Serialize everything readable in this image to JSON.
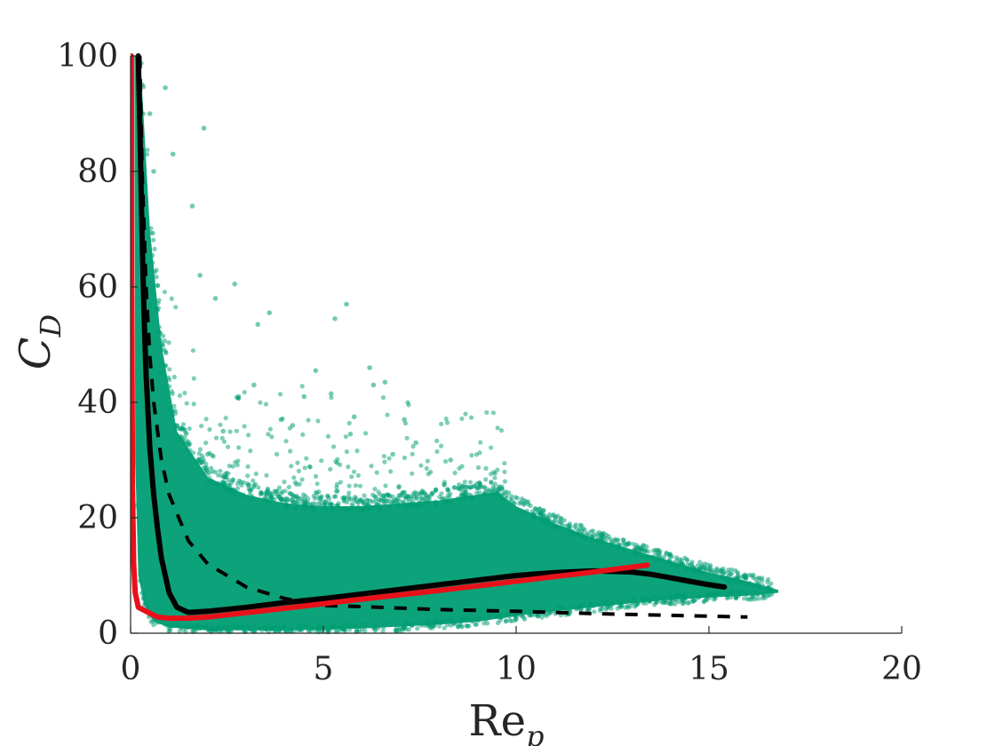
{
  "chart_data": {
    "type": "scatter",
    "xlabel": "Re",
    "xlabel_sub": "p",
    "ylabel": "C",
    "ylabel_sub": "D",
    "xlim": [
      0,
      20
    ],
    "ylim": [
      0,
      100
    ],
    "xticks": [
      0,
      5,
      10,
      15,
      20
    ],
    "yticks": [
      0,
      20,
      40,
      60,
      80,
      100
    ],
    "xtick_labels": [
      "0",
      "5",
      "10",
      "15",
      "20"
    ],
    "ytick_labels": [
      "0",
      "20",
      "40",
      "60",
      "80",
      "100"
    ],
    "grid": false,
    "legend": "none",
    "colors": {
      "scatter": "#009E73",
      "black_curve": "#000000",
      "red_curve": "#E8111A",
      "axis": "#262626"
    },
    "series": [
      {
        "kind": "scatter-cloud",
        "description_points": [
          [
            0.3,
            95
          ],
          [
            0.5,
            90
          ],
          [
            0.9,
            94.5
          ],
          [
            1.9,
            87.5
          ],
          [
            0.6,
            80
          ],
          [
            1.1,
            83
          ],
          [
            1.6,
            74
          ],
          [
            1.8,
            62
          ],
          [
            2.7,
            60.5
          ],
          [
            2.2,
            58
          ],
          [
            3.6,
            55.5
          ],
          [
            3.3,
            53.5
          ],
          [
            5.6,
            57
          ],
          [
            5.3,
            54.5
          ],
          [
            6.2,
            46
          ],
          [
            4.8,
            45.5
          ],
          [
            4.5,
            41
          ],
          [
            5.2,
            41.5
          ],
          [
            6.3,
            43
          ],
          [
            6.6,
            43.5
          ],
          [
            3.2,
            43
          ],
          [
            2.8,
            41
          ],
          [
            3.9,
            37
          ],
          [
            4.2,
            36
          ],
          [
            5.8,
            37.5
          ],
          [
            5.7,
            34.5
          ],
          [
            7.1,
            37
          ],
          [
            7.4,
            33
          ],
          [
            8.3,
            30
          ],
          [
            6.8,
            31
          ],
          [
            2.4,
            35
          ],
          [
            2.0,
            31
          ],
          [
            1.5,
            33
          ],
          [
            1.2,
            36
          ],
          [
            1.0,
            39
          ],
          [
            0.8,
            45
          ]
        ],
        "envelope_upper": [
          [
            0.25,
            100
          ],
          [
            0.5,
            70
          ],
          [
            0.8,
            50
          ],
          [
            1.2,
            35
          ],
          [
            2,
            27
          ],
          [
            3,
            24
          ],
          [
            4,
            22.5
          ],
          [
            5,
            22
          ],
          [
            6,
            22
          ],
          [
            7,
            22.5
          ],
          [
            8,
            23
          ],
          [
            9,
            24
          ],
          [
            9.5,
            24.5
          ],
          [
            10,
            22
          ],
          [
            11,
            19
          ],
          [
            12,
            16.5
          ],
          [
            13,
            14.5
          ],
          [
            14,
            12.5
          ],
          [
            15,
            10.5
          ],
          [
            16,
            9
          ],
          [
            16.8,
            7.5
          ]
        ],
        "envelope_lower": [
          [
            0.1,
            100
          ],
          [
            0.12,
            30
          ],
          [
            0.2,
            10
          ],
          [
            0.35,
            5
          ],
          [
            0.6,
            2
          ],
          [
            1,
            1
          ],
          [
            2,
            0.5
          ],
          [
            4,
            0.5
          ],
          [
            6,
            0.8
          ],
          [
            8,
            1.5
          ],
          [
            9,
            2
          ],
          [
            10,
            3
          ],
          [
            11,
            3.8
          ],
          [
            12,
            4.5
          ],
          [
            13,
            5.2
          ],
          [
            14,
            5.8
          ],
          [
            15,
            6.2
          ],
          [
            16,
            6.5
          ],
          [
            16.8,
            7
          ]
        ]
      },
      {
        "kind": "line",
        "style": "solid-thick",
        "color_key": "black_curve",
        "x": [
          0.2,
          0.25,
          0.3,
          0.35,
          0.4,
          0.5,
          0.6,
          0.7,
          0.8,
          1.0,
          1.2,
          1.5,
          2,
          3,
          4,
          5,
          6,
          7,
          8,
          9,
          10,
          11,
          12,
          13,
          13.5,
          14,
          14.5,
          15,
          15.4
        ],
        "y": [
          100,
          85,
          68,
          55,
          45,
          32,
          24,
          18,
          13,
          7,
          4.5,
          3.6,
          3.8,
          4.5,
          5.3,
          6,
          6.8,
          7.6,
          8.4,
          9.2,
          10,
          10.5,
          10.8,
          10.6,
          10.2,
          9.6,
          9.0,
          8.4,
          8.0
        ]
      },
      {
        "kind": "line",
        "style": "dashed",
        "color_key": "black_curve",
        "x": [
          0.24,
          0.3,
          0.4,
          0.5,
          0.6,
          0.8,
          1.0,
          1.5,
          2,
          3,
          4,
          5,
          6,
          8,
          10,
          12,
          14,
          16
        ],
        "y": [
          100,
          80,
          60,
          48,
          40,
          30,
          24,
          16,
          12,
          8,
          6,
          4.8,
          4.6,
          4.1,
          3.8,
          3.4,
          3.1,
          2.8
        ]
      },
      {
        "kind": "line",
        "style": "solid-thick",
        "color_key": "red_curve",
        "x": [
          0.02,
          0.03,
          0.05,
          0.08,
          0.12,
          0.2,
          0.4,
          0.7,
          1.0,
          1.5,
          2,
          4,
          6,
          8,
          10,
          12,
          13.4
        ],
        "y": [
          100,
          60,
          25,
          12,
          7,
          4.5,
          3.8,
          2.8,
          2.6,
          2.6,
          2.8,
          4.3,
          5.9,
          7.4,
          9.0,
          10.6,
          11.8
        ]
      }
    ]
  }
}
